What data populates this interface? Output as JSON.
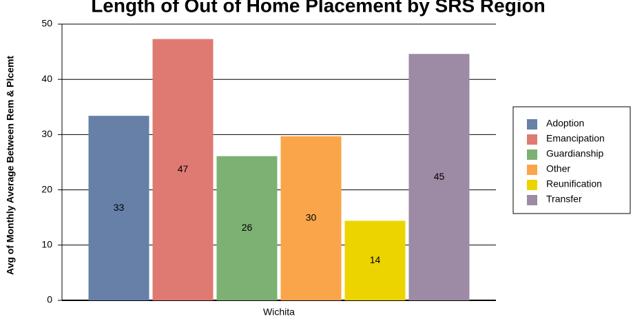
{
  "chart_data": {
    "type": "bar",
    "title": "Length of Out of Home Placement by SRS Region",
    "y_label": "Avg of Monthly Average Between Rem & Plcemt",
    "categories": [
      "Wichita"
    ],
    "series": [
      {
        "name": "Adoption",
        "color": "#6680a8",
        "values": [
          33.4
        ],
        "value_labels": [
          "33"
        ]
      },
      {
        "name": "Emancipation",
        "color": "#df7a72",
        "values": [
          47.3
        ],
        "value_labels": [
          "47"
        ]
      },
      {
        "name": "Guardianship",
        "color": "#7db073",
        "values": [
          26.1
        ],
        "value_labels": [
          "26"
        ]
      },
      {
        "name": "Other",
        "color": "#fba54a",
        "values": [
          29.7
        ],
        "value_labels": [
          "30"
        ]
      },
      {
        "name": "Reunification",
        "color": "#ecd400",
        "values": [
          14.4
        ],
        "value_labels": [
          "14"
        ]
      },
      {
        "name": "Transfer",
        "color": "#9d8aa5",
        "values": [
          44.6
        ],
        "value_labels": [
          "45"
        ]
      }
    ],
    "ylim": [
      0,
      50
    ],
    "yticks": [
      0,
      10,
      20,
      30,
      40,
      50
    ],
    "grid": true,
    "legend": "right"
  }
}
